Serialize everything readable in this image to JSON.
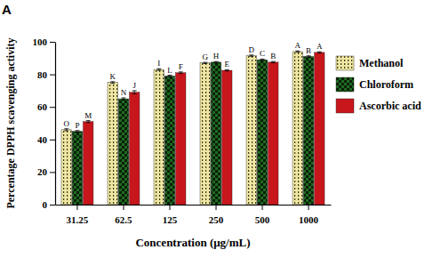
{
  "chart_data": {
    "type": "bar",
    "title": "A",
    "x_label": "Concentration (μg/mL)",
    "y_label": "Percentage DPPH scavenging activity",
    "categories": [
      "31.25",
      "62.5",
      "125",
      "250",
      "500",
      "1000"
    ],
    "series": [
      {
        "name": "Methanol",
        "color": "#efe6a2",
        "values": [
          46,
          75,
          83,
          87,
          91.5,
          94
        ],
        "errors": [
          0.6,
          0.5,
          0.5,
          0.4,
          0.4,
          0.4
        ],
        "letters": [
          "O",
          "K",
          "I",
          "G",
          "D",
          "A"
        ]
      },
      {
        "name": "Chloroform",
        "color": "#1f6b1f",
        "values": [
          45,
          65,
          79,
          87.5,
          89,
          91
        ],
        "errors": [
          0.5,
          0.6,
          0.5,
          0.4,
          0.4,
          0.4
        ],
        "letters": [
          "P",
          "N",
          "L",
          "H",
          "C",
          "B"
        ]
      },
      {
        "name": "Ascorbic acid",
        "color": "#c8161d",
        "values": [
          51,
          69,
          81,
          82.5,
          87.5,
          93.5
        ],
        "errors": [
          0.6,
          1,
          0.5,
          0.4,
          0.4,
          0.4
        ],
        "letters": [
          "M",
          "J",
          "F",
          "E",
          "B",
          "A"
        ]
      }
    ],
    "ylim": [
      0,
      100
    ],
    "yticks": [
      0,
      20,
      40,
      60,
      80,
      100
    ],
    "grid": false,
    "legend": "upper right"
  }
}
